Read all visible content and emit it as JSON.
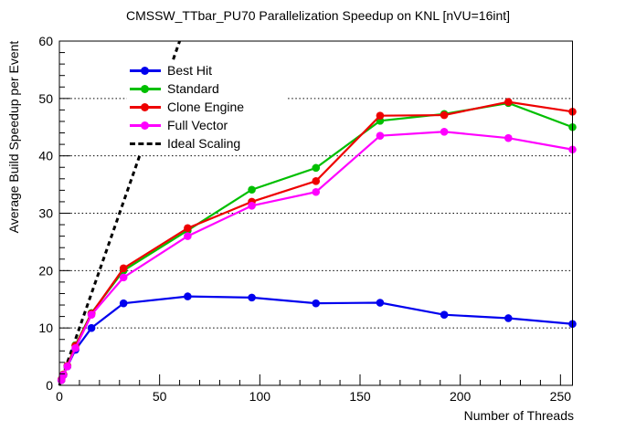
{
  "title": "CMSSW_TTbar_PU70 Parallelization Speedup on KNL [nVU=16int]",
  "chart_data": {
    "type": "line",
    "title": "CMSSW_TTbar_PU70 Parallelization Speedup on KNL [nVU=16int]",
    "xlabel": "Number of Threads",
    "ylabel": "Average Build Speedup per Event",
    "xlim": [
      0,
      256
    ],
    "ylim": [
      0,
      60
    ],
    "x_major_ticks": [
      0,
      50,
      100,
      150,
      200,
      250
    ],
    "x_minor_step": 10,
    "y_major_ticks": [
      0,
      10,
      20,
      30,
      40,
      50,
      60
    ],
    "y_minor_step": 2,
    "grid": {
      "style": "dotted",
      "horizontal_at": [
        10,
        20,
        30,
        40,
        50
      ]
    },
    "legend_position": "upper-left-inside",
    "x": [
      1,
      2,
      4,
      8,
      16,
      32,
      64,
      96,
      128,
      160,
      192,
      224,
      256
    ],
    "series": [
      {
        "name": "Best Hit",
        "color": "#0000ee",
        "marker": "filled-circle",
        "values": [
          0.9,
          1.8,
          3.3,
          6.2,
          10.0,
          14.3,
          15.5,
          15.3,
          14.3,
          14.4,
          12.3,
          11.7,
          10.7
        ]
      },
      {
        "name": "Standard",
        "color": "#00bf00",
        "marker": "filled-circle",
        "values": [
          0.9,
          1.9,
          3.4,
          7.0,
          12.6,
          20.0,
          27.0,
          34.1,
          37.9,
          46.1,
          47.3,
          49.2,
          45.0
        ]
      },
      {
        "name": "Clone Engine",
        "color": "#ee0000",
        "marker": "filled-circle",
        "values": [
          1.0,
          1.9,
          3.4,
          6.9,
          12.5,
          20.4,
          27.4,
          32.0,
          35.6,
          47.0,
          47.1,
          49.4,
          47.7
        ]
      },
      {
        "name": "Full Vector",
        "color": "#ff00ff",
        "marker": "filled-circle",
        "values": [
          0.9,
          1.8,
          3.3,
          6.5,
          12.3,
          18.8,
          26.0,
          31.3,
          33.7,
          43.5,
          44.2,
          43.1,
          41.1
        ]
      }
    ],
    "reference_line": {
      "name": "Ideal Scaling",
      "color": "#000000",
      "style": "dashed",
      "x": [
        0,
        60
      ],
      "y": [
        0,
        60
      ]
    }
  }
}
